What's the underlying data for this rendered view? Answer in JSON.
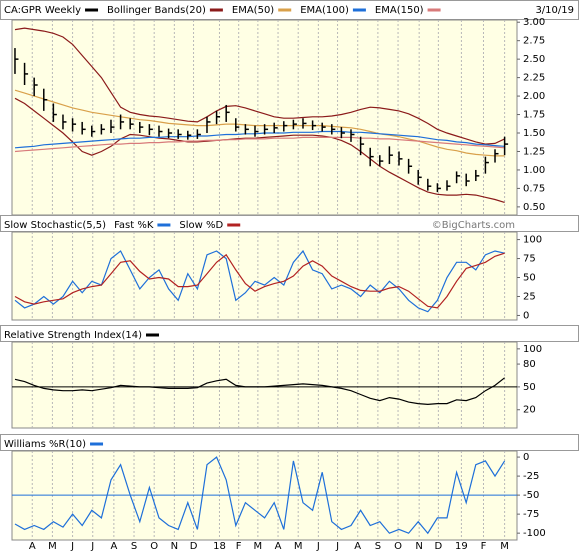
{
  "chart_data": [
    {
      "type": "ohlc",
      "date": "3/10/19",
      "ylim": [
        0.39,
        3.03
      ],
      "grid": true,
      "yticks": [
        {
          "value": 0.5,
          "label": "0.50"
        },
        {
          "value": 0.75,
          "label": "0.75"
        },
        {
          "value": 1,
          "label": "1.00"
        },
        {
          "value": 1.25,
          "label": "1.25"
        },
        {
          "value": 1.5,
          "label": "1.50"
        },
        {
          "value": 1.75,
          "label": "1.75"
        },
        {
          "value": 2,
          "label": "2.00"
        },
        {
          "value": 2.25,
          "label": "2.25"
        },
        {
          "value": 2.5,
          "label": "2.50"
        },
        {
          "value": 2.75,
          "label": "2.75"
        },
        {
          "value": 3,
          "label": "3.00"
        }
      ],
      "series": [
        {
          "name": "CA:GPR Weekly",
          "color": "#000000",
          "high": [
            2.65,
            2.45,
            2.25,
            2.1,
            1.9,
            1.75,
            1.7,
            1.65,
            1.6,
            1.62,
            1.68,
            1.75,
            1.7,
            1.65,
            1.62,
            1.6,
            1.56,
            1.55,
            1.53,
            1.55,
            1.72,
            1.8,
            1.88,
            1.7,
            1.62,
            1.6,
            1.62,
            1.64,
            1.66,
            1.68,
            1.7,
            1.67,
            1.64,
            1.62,
            1.58,
            1.55,
            1.45,
            1.3,
            1.2,
            1.32,
            1.25,
            1.15,
            1.0,
            0.88,
            0.82,
            0.86,
            0.98,
            0.95,
            1.0,
            1.18,
            1.28,
            1.45
          ],
          "low": [
            2.3,
            2.15,
            2.0,
            1.8,
            1.65,
            1.55,
            1.52,
            1.48,
            1.45,
            1.48,
            1.5,
            1.55,
            1.55,
            1.5,
            1.47,
            1.45,
            1.43,
            1.42,
            1.41,
            1.42,
            1.5,
            1.62,
            1.65,
            1.52,
            1.48,
            1.45,
            1.48,
            1.5,
            1.52,
            1.55,
            1.56,
            1.54,
            1.52,
            1.48,
            1.43,
            1.38,
            1.2,
            1.05,
            1.05,
            1.08,
            1.06,
            0.95,
            0.8,
            0.72,
            0.7,
            0.72,
            0.82,
            0.78,
            0.85,
            0.95,
            1.1,
            1.2
          ],
          "close": [
            2.5,
            2.3,
            2.15,
            1.95,
            1.75,
            1.65,
            1.62,
            1.55,
            1.52,
            1.55,
            1.58,
            1.65,
            1.62,
            1.58,
            1.55,
            1.52,
            1.5,
            1.48,
            1.47,
            1.48,
            1.65,
            1.72,
            1.78,
            1.58,
            1.55,
            1.52,
            1.55,
            1.57,
            1.6,
            1.62,
            1.63,
            1.6,
            1.58,
            1.55,
            1.5,
            1.48,
            1.35,
            1.18,
            1.12,
            1.2,
            1.15,
            1.05,
            0.9,
            0.78,
            0.75,
            0.78,
            0.92,
            0.85,
            0.92,
            1.1,
            1.22,
            1.35
          ]
        },
        {
          "name": "Bollinger Bands(20)",
          "color": "#8b1a1a",
          "upper": [
            2.9,
            2.92,
            2.9,
            2.88,
            2.85,
            2.8,
            2.7,
            2.55,
            2.4,
            2.25,
            2.05,
            1.85,
            1.78,
            1.75,
            1.73,
            1.72,
            1.7,
            1.68,
            1.66,
            1.65,
            1.72,
            1.8,
            1.86,
            1.87,
            1.84,
            1.8,
            1.76,
            1.72,
            1.7,
            1.7,
            1.71,
            1.72,
            1.72,
            1.73,
            1.75,
            1.78,
            1.82,
            1.85,
            1.84,
            1.82,
            1.8,
            1.76,
            1.7,
            1.63,
            1.55,
            1.5,
            1.46,
            1.42,
            1.38,
            1.35,
            1.36,
            1.42
          ],
          "lower": [
            1.97,
            1.9,
            1.8,
            1.7,
            1.6,
            1.5,
            1.38,
            1.25,
            1.2,
            1.25,
            1.32,
            1.42,
            1.48,
            1.47,
            1.45,
            1.43,
            1.42,
            1.4,
            1.38,
            1.38,
            1.39,
            1.4,
            1.41,
            1.42,
            1.43,
            1.43,
            1.44,
            1.45,
            1.46,
            1.47,
            1.47,
            1.47,
            1.46,
            1.44,
            1.4,
            1.34,
            1.25,
            1.15,
            1.05,
            0.97,
            0.9,
            0.83,
            0.76,
            0.7,
            0.67,
            0.66,
            0.66,
            0.67,
            0.66,
            0.63,
            0.6,
            0.56
          ]
        },
        {
          "name": "EMA(50)",
          "color": "#d9a04a",
          "values": [
            2.08,
            2.04,
            2.0,
            1.96,
            1.92,
            1.88,
            1.84,
            1.81,
            1.78,
            1.76,
            1.74,
            1.72,
            1.7,
            1.68,
            1.67,
            1.65,
            1.63,
            1.62,
            1.61,
            1.6,
            1.6,
            1.61,
            1.62,
            1.62,
            1.61,
            1.6,
            1.6,
            1.6,
            1.6,
            1.6,
            1.6,
            1.6,
            1.6,
            1.59,
            1.58,
            1.57,
            1.55,
            1.52,
            1.49,
            1.47,
            1.45,
            1.42,
            1.39,
            1.35,
            1.31,
            1.28,
            1.26,
            1.23,
            1.21,
            1.2,
            1.19,
            1.19
          ]
        },
        {
          "name": "EMA(100)",
          "color": "#1e6fd9",
          "values": [
            1.3,
            1.31,
            1.32,
            1.34,
            1.35,
            1.36,
            1.37,
            1.38,
            1.39,
            1.4,
            1.41,
            1.42,
            1.43,
            1.43,
            1.44,
            1.44,
            1.45,
            1.45,
            1.45,
            1.46,
            1.46,
            1.47,
            1.48,
            1.48,
            1.49,
            1.49,
            1.5,
            1.5,
            1.5,
            1.51,
            1.51,
            1.51,
            1.52,
            1.52,
            1.52,
            1.51,
            1.51,
            1.5,
            1.49,
            1.48,
            1.47,
            1.46,
            1.45,
            1.43,
            1.41,
            1.4,
            1.38,
            1.37,
            1.35,
            1.34,
            1.33,
            1.32
          ]
        },
        {
          "name": "EMA(150)",
          "color": "#d87a7a",
          "values": [
            1.25,
            1.26,
            1.27,
            1.28,
            1.29,
            1.3,
            1.31,
            1.32,
            1.33,
            1.34,
            1.35,
            1.35,
            1.36,
            1.36,
            1.37,
            1.37,
            1.38,
            1.38,
            1.39,
            1.39,
            1.4,
            1.4,
            1.41,
            1.41,
            1.42,
            1.42,
            1.42,
            1.43,
            1.43,
            1.43,
            1.44,
            1.44,
            1.44,
            1.44,
            1.44,
            1.44,
            1.43,
            1.43,
            1.42,
            1.42,
            1.41,
            1.4,
            1.39,
            1.38,
            1.37,
            1.36,
            1.35,
            1.34,
            1.33,
            1.32,
            1.31,
            1.3
          ]
        }
      ]
    },
    {
      "type": "line",
      "title": "Slow Stochastic(5,5)",
      "watermark": "©BigCharts.com",
      "ylim": [
        -6,
        110
      ],
      "yticks": [
        0,
        25,
        50,
        75,
        100
      ],
      "grid": true,
      "series": [
        {
          "name": "Fast %K",
          "color": "#1e6fd9",
          "values": [
            20,
            10,
            15,
            25,
            15,
            25,
            45,
            30,
            45,
            40,
            75,
            85,
            60,
            35,
            50,
            60,
            35,
            20,
            55,
            35,
            80,
            85,
            75,
            20,
            30,
            45,
            40,
            50,
            40,
            70,
            85,
            60,
            55,
            35,
            40,
            35,
            25,
            40,
            30,
            45,
            35,
            20,
            10,
            5,
            20,
            50,
            70,
            70,
            60,
            80,
            85,
            82
          ]
        },
        {
          "name": "Slow %D",
          "color": "#b22222",
          "values": [
            25,
            18,
            15,
            18,
            20,
            22,
            30,
            35,
            38,
            40,
            55,
            70,
            72,
            58,
            48,
            50,
            48,
            38,
            38,
            40,
            55,
            70,
            80,
            60,
            42,
            32,
            38,
            42,
            45,
            52,
            65,
            72,
            65,
            52,
            45,
            38,
            33,
            32,
            32,
            36,
            38,
            32,
            22,
            12,
            10,
            25,
            45,
            62,
            66,
            70,
            78,
            82
          ]
        }
      ]
    },
    {
      "type": "line",
      "ylim": [
        -4,
        109
      ],
      "yticks": [
        20,
        50,
        80,
        100
      ],
      "grid": true,
      "hline": {
        "value": 50,
        "color": "#000000"
      },
      "series": [
        {
          "name": "Relative Strength Index(14)",
          "color": "#000000",
          "values": [
            60,
            57,
            52,
            48,
            46,
            45,
            45,
            46,
            45,
            47,
            49,
            52,
            51,
            50,
            50,
            49,
            48,
            48,
            48,
            49,
            55,
            58,
            60,
            52,
            50,
            50,
            50,
            51,
            52,
            53,
            54,
            53,
            52,
            50,
            48,
            45,
            40,
            35,
            32,
            36,
            34,
            30,
            28,
            27,
            28,
            28,
            33,
            32,
            36,
            45,
            52,
            62
          ]
        }
      ]
    },
    {
      "type": "line",
      "ylim": [
        -109,
        8
      ],
      "yticks": [
        -100,
        -75,
        -50,
        -25,
        0
      ],
      "grid": true,
      "hline": {
        "value": -50,
        "color": "#1e6fd9"
      },
      "xlim": [
        -0.31,
        52.29
      ],
      "xticks": [
        {
          "value": 1.8,
          "label": "A"
        },
        {
          "value": 3.9,
          "label": "M"
        },
        {
          "value": 6.0,
          "label": "J"
        },
        {
          "value": 8.1,
          "label": "J"
        },
        {
          "value": 10.3,
          "label": "A"
        },
        {
          "value": 12.4,
          "label": "S"
        },
        {
          "value": 14.5,
          "label": "O"
        },
        {
          "value": 16.6,
          "label": "N"
        },
        {
          "value": 18.6,
          "label": "D"
        },
        {
          "value": 21.3,
          "label": "18"
        },
        {
          "value": 23.3,
          "label": "F"
        },
        {
          "value": 25.3,
          "label": "M"
        },
        {
          "value": 27.4,
          "label": "A"
        },
        {
          "value": 29.5,
          "label": "M"
        },
        {
          "value": 31.6,
          "label": "J"
        },
        {
          "value": 33.6,
          "label": "J"
        },
        {
          "value": 35.7,
          "label": "A"
        },
        {
          "value": 37.8,
          "label": "S"
        },
        {
          "value": 39.9,
          "label": "O"
        },
        {
          "value": 42.1,
          "label": "N"
        },
        {
          "value": 44.1,
          "label": "D"
        },
        {
          "value": 46.5,
          "label": "19"
        },
        {
          "value": 48.8,
          "label": "F"
        },
        {
          "value": 51.0,
          "label": "M"
        }
      ],
      "series": [
        {
          "name": "Williams %R(10)",
          "color": "#1e6fd9",
          "values": [
            -88,
            -95,
            -90,
            -95,
            -85,
            -92,
            -75,
            -90,
            -70,
            -80,
            -30,
            -10,
            -50,
            -85,
            -40,
            -80,
            -90,
            -95,
            -60,
            -95,
            -10,
            0,
            -30,
            -90,
            -60,
            -70,
            -80,
            -60,
            -95,
            -5,
            -60,
            -70,
            -20,
            -85,
            -95,
            -90,
            -70,
            -90,
            -85,
            -100,
            -95,
            -100,
            -85,
            -100,
            -80,
            -80,
            -20,
            -60,
            -10,
            -5,
            -25,
            -5
          ]
        }
      ]
    }
  ]
}
